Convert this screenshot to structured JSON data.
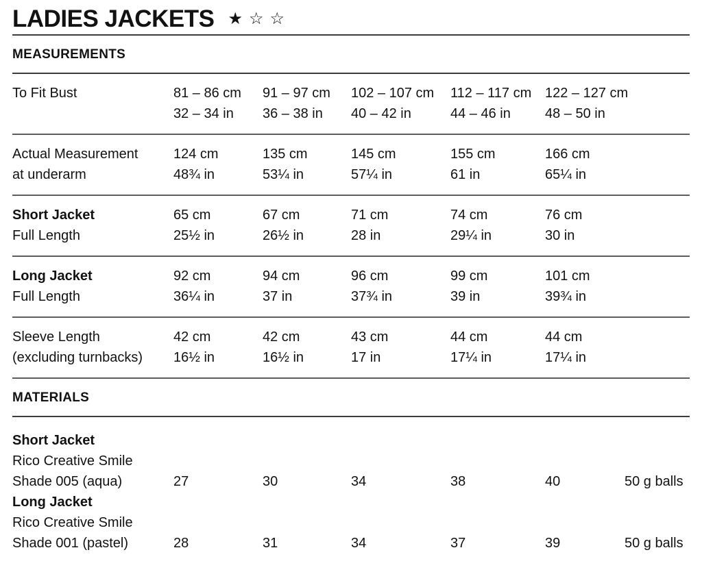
{
  "page": {
    "title": "LADIES JACKETS",
    "rating": {
      "stars": [
        "★",
        "☆",
        "☆"
      ]
    }
  },
  "measurements": {
    "heading": "MEASUREMENTS",
    "rows": [
      {
        "label": {
          "line1": "To Fit Bust",
          "line2": ""
        },
        "cells": [
          {
            "cm": "81 – 86 cm",
            "in": "32 – 34 in"
          },
          {
            "cm": "91 – 97 cm",
            "in": "36 – 38 in"
          },
          {
            "cm": "102 – 107 cm",
            "in": "40 – 42 in"
          },
          {
            "cm": "112 – 117 cm",
            "in": "44 – 46 in"
          },
          {
            "cm": "122 – 127 cm",
            "in": "48 – 50 in"
          }
        ]
      },
      {
        "label": {
          "line1": "Actual Measurement",
          "line2": "at underarm"
        },
        "cells": [
          {
            "cm": "124 cm",
            "in": "48¾ in"
          },
          {
            "cm": "135 cm",
            "in": "53¼ in"
          },
          {
            "cm": "145 cm",
            "in": "57¼ in"
          },
          {
            "cm": "155 cm",
            "in": "61 in"
          },
          {
            "cm": "166 cm",
            "in": "65¼ in"
          }
        ]
      },
      {
        "label": {
          "line1": "Short Jacket",
          "line2": "Full Length"
        },
        "cells": [
          {
            "cm": "65 cm",
            "in": "25½ in"
          },
          {
            "cm": "67 cm",
            "in": "26½ in"
          },
          {
            "cm": "71 cm",
            "in": "28 in"
          },
          {
            "cm": "74 cm",
            "in": "29¼ in"
          },
          {
            "cm": "76 cm",
            "in": "30 in"
          }
        ]
      },
      {
        "label": {
          "line1": "Long Jacket",
          "line2": "Full Length"
        },
        "cells": [
          {
            "cm": "92 cm",
            "in": "36¼ in"
          },
          {
            "cm": "94 cm",
            "in": "37 in"
          },
          {
            "cm": "96 cm",
            "in": "37¾ in"
          },
          {
            "cm": "99 cm",
            "in": "39 in"
          },
          {
            "cm": "101 cm",
            "in": "39¾ in"
          }
        ]
      },
      {
        "label": {
          "line1": "Sleeve Length",
          "line2": "(excluding turnbacks)"
        },
        "cells": [
          {
            "cm": "42 cm",
            "in": "16½ in"
          },
          {
            "cm": "42 cm",
            "in": "16½ in"
          },
          {
            "cm": "43 cm",
            "in": "17 in"
          },
          {
            "cm": "44 cm",
            "in": "17¼ in"
          },
          {
            "cm": "44 cm",
            "in": "17¼ in"
          }
        ]
      }
    ]
  },
  "materials": {
    "heading": "MATERIALS",
    "items": [
      {
        "name": "Short Jacket",
        "yarn": "Rico Creative Smile",
        "shade": "Shade 005 (aqua)",
        "quantities": [
          "27",
          "30",
          "34",
          "38",
          "40"
        ],
        "unit": "50 g balls"
      },
      {
        "name": "Long Jacket",
        "yarn": "Rico Creative Smile",
        "shade": "Shade 001 (pastel)",
        "quantities": [
          "28",
          "31",
          "34",
          "37",
          "39"
        ],
        "unit": "50 g balls"
      }
    ]
  }
}
